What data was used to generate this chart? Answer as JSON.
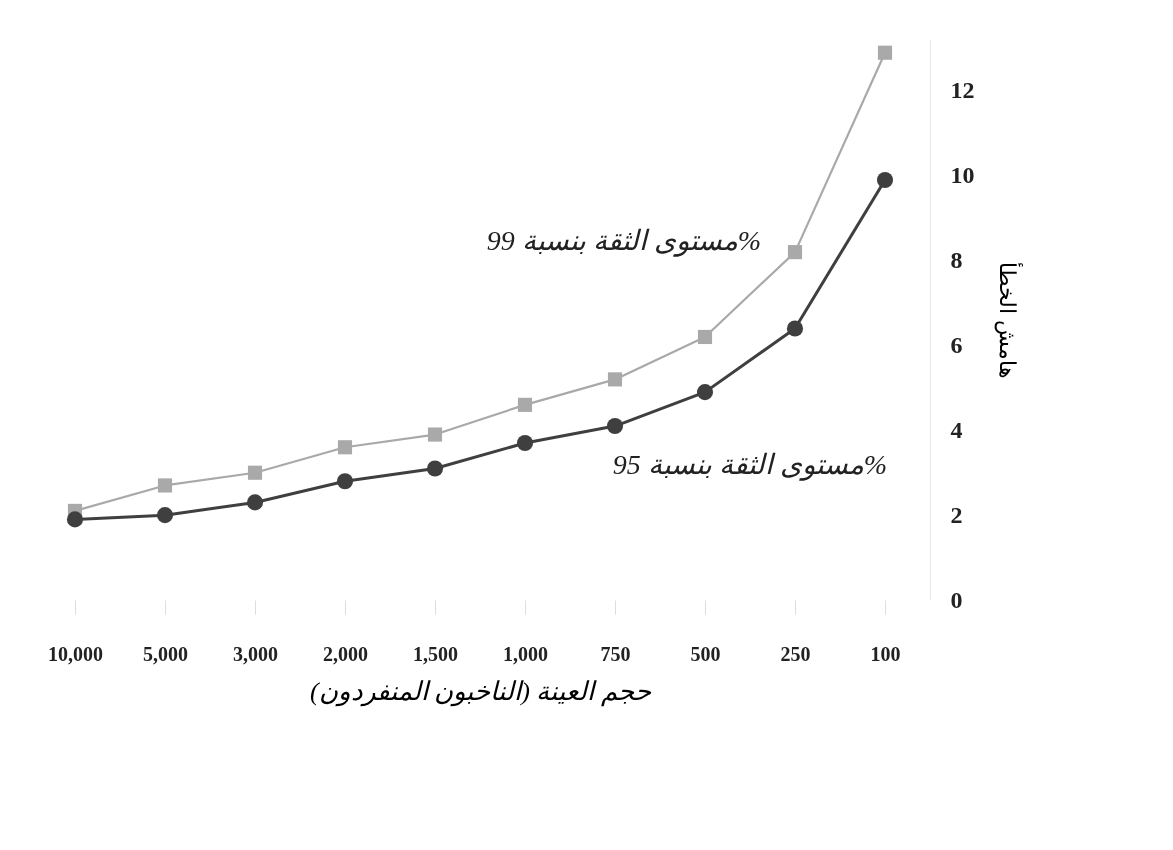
{
  "chart_data": {
    "type": "line",
    "xlabel": "حجم العينة (الناخبون المنفردون)",
    "ylabel": "هامش الخطأ",
    "categories": [
      "10,000",
      "5,000",
      "3,000",
      "2,000",
      "1,500",
      "1,000",
      "750",
      "500",
      "250",
      "100"
    ],
    "series": [
      {
        "name": "مستوى الثقة بنسبة 99%",
        "color": "#a9a9a9",
        "marker": "square",
        "values": [
          2.1,
          2.7,
          3.0,
          3.6,
          3.9,
          4.6,
          5.2,
          6.2,
          8.2,
          12.9
        ]
      },
      {
        "name": "مستوى الثقة بنسبة 95%",
        "color": "#3f3f3f",
        "marker": "circle",
        "values": [
          1.9,
          2.0,
          2.3,
          2.8,
          3.1,
          3.7,
          4.1,
          4.9,
          6.4,
          9.9
        ]
      }
    ],
    "ylim": [
      0,
      13.2
    ],
    "yticks": [
      0,
      2,
      4,
      6,
      8,
      10,
      12
    ],
    "grid": false,
    "line_style": "solid"
  }
}
